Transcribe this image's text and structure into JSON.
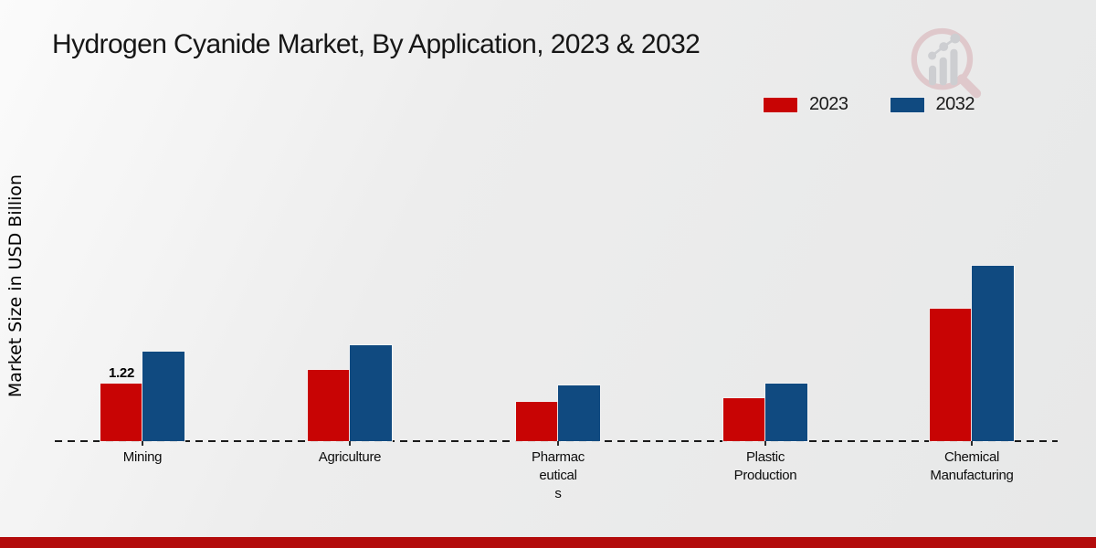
{
  "chart_data": {
    "type": "bar",
    "title": "Hydrogen Cyanide Market, By Application, 2023 & 2032",
    "ylabel": "Market Size in USD Billion",
    "xlabel": "",
    "categories": [
      "Mining",
      "Agriculture",
      "Pharmaceuticals",
      "Plastic Production",
      "Chemical Manufacturing"
    ],
    "category_label_lines": [
      [
        "Mining"
      ],
      [
        "Agriculture"
      ],
      [
        "Pharmac",
        "eutical",
        "s"
      ],
      [
        "Plastic",
        "Production"
      ],
      [
        "Chemical",
        "Manufacturing"
      ]
    ],
    "series": [
      {
        "name": "2023",
        "color": "#c80404",
        "values": [
          1.22,
          1.51,
          0.83,
          0.91,
          2.81
        ]
      },
      {
        "name": "2032",
        "color": "#104a80",
        "values": [
          1.9,
          2.03,
          1.18,
          1.22,
          3.72
        ]
      }
    ],
    "annotations": [
      {
        "category_index": 0,
        "series_index": 0,
        "text": "1.22"
      }
    ],
    "ylim": [
      0,
      4.2
    ],
    "grid": false,
    "legend_position": "top-right",
    "baseline_style": "dashed"
  },
  "footer": {
    "accent_color": "#b30b0b"
  },
  "logo": {
    "name": "market-research-future-logo"
  }
}
